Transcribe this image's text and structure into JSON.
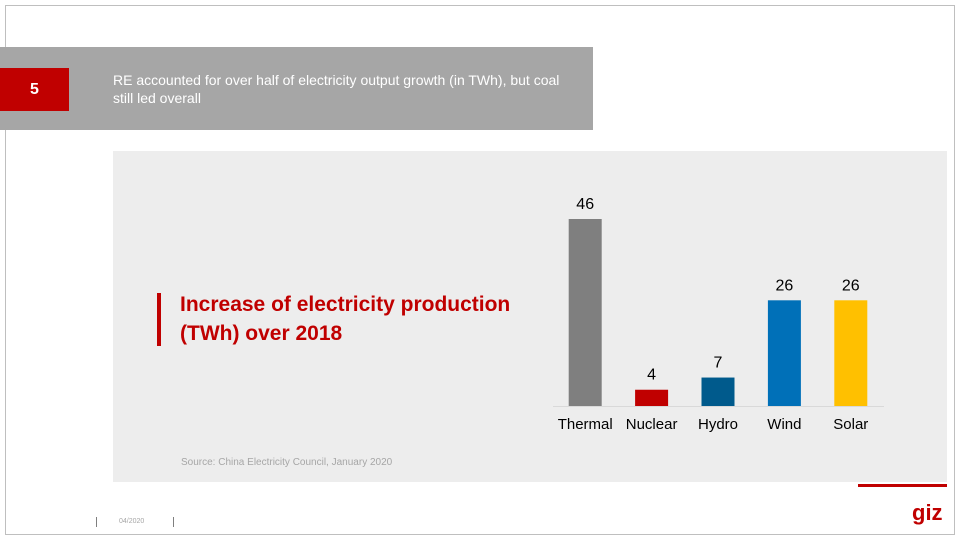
{
  "slide_number": "5",
  "headline": "RE accounted for over half of electricity output growth (in TWh), but coal still led overall",
  "footer_date": "04/2020",
  "logo": "giz",
  "chart_data": {
    "type": "bar",
    "title": "Increase of electricity production (TWh) over 2018",
    "source": "Source: China Electricity Council, January 2020",
    "categories": [
      "Thermal",
      "Nuclear",
      "Hydro",
      "Wind",
      "Solar"
    ],
    "values": [
      46,
      4,
      7,
      26,
      26
    ],
    "colors": [
      "#7f7f7f",
      "#c00000",
      "#005a8c",
      "#0070b8",
      "#ffc000"
    ]
  }
}
